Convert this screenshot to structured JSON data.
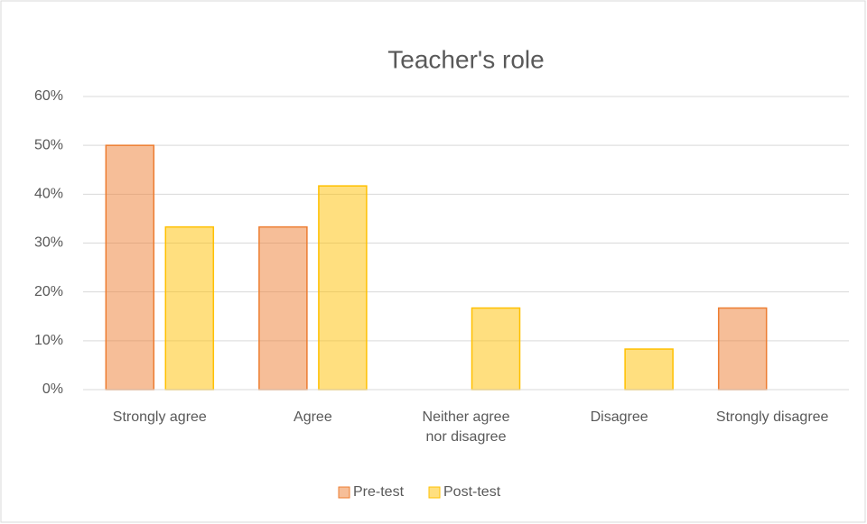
{
  "chart_data": {
    "type": "bar",
    "title": "Teacher's role",
    "categories": [
      "Strongly agree",
      "Agree",
      "Neither agree nor disagree",
      "Disagree",
      "Strongly disagree"
    ],
    "series": [
      {
        "name": "Pre-test",
        "color": "#ed7d31",
        "values": [
          50,
          33.3,
          0,
          0,
          16.7
        ]
      },
      {
        "name": "Post-test",
        "color": "#ffc000",
        "values": [
          33.3,
          41.7,
          16.7,
          8.3,
          0
        ]
      }
    ],
    "ylim": [
      0,
      60
    ],
    "yticks": [
      {
        "value": 0,
        "label": "0%"
      },
      {
        "value": 10,
        "label": "10%"
      },
      {
        "value": 20,
        "label": "20%"
      },
      {
        "value": 30,
        "label": "30%"
      },
      {
        "value": 40,
        "label": "40%"
      },
      {
        "value": 50,
        "label": "50%"
      },
      {
        "value": 60,
        "label": "60%"
      }
    ],
    "grid": true,
    "legend": "bottom"
  }
}
